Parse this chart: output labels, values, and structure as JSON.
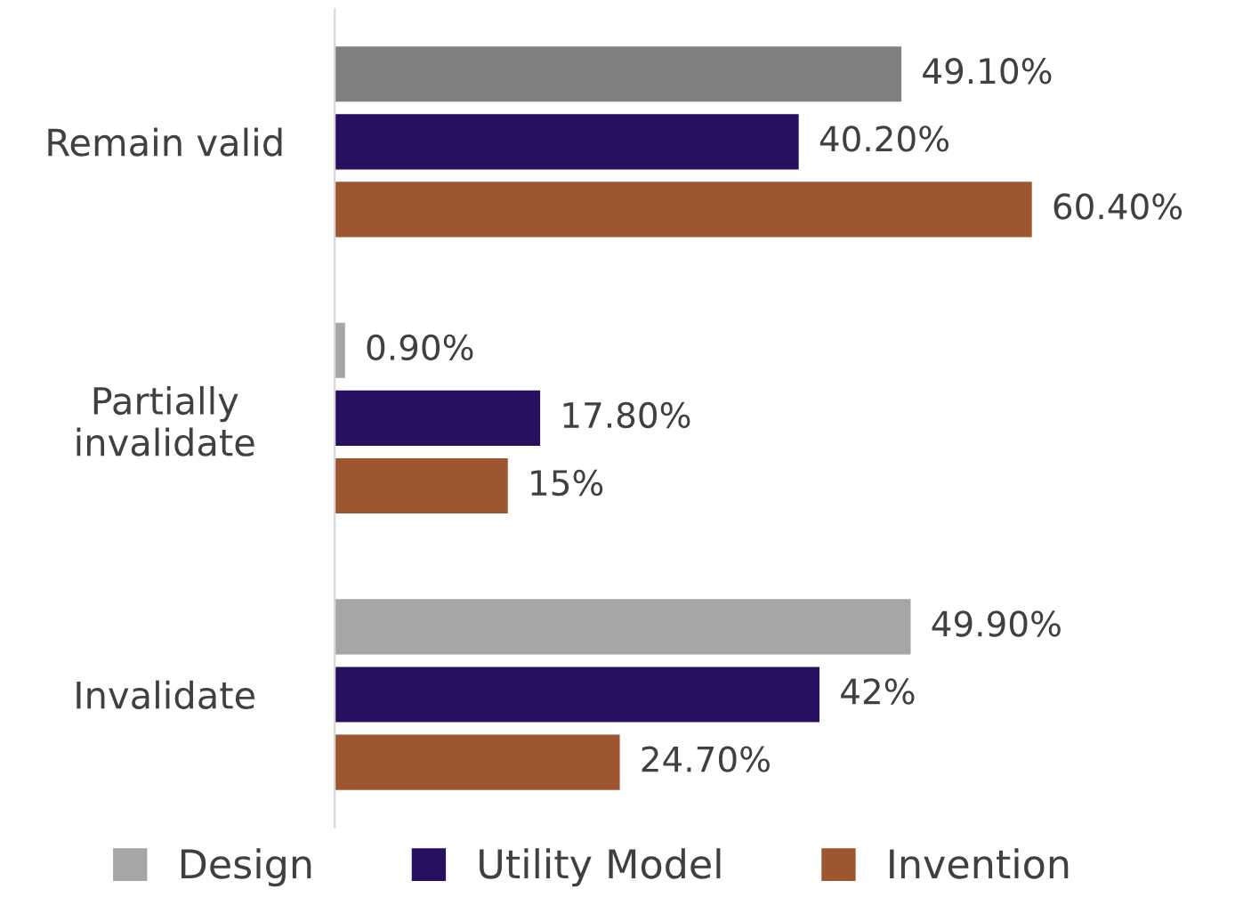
{
  "chart_data": {
    "type": "bar",
    "orientation": "horizontal",
    "categories": [
      "Remain valid",
      "Partially\ninvalidate",
      "Invalidate"
    ],
    "series": [
      {
        "name": "Design",
        "color": "#a6a6a6",
        "colors": [
          "#808080",
          "#a6a6a6",
          "#a6a6a6"
        ],
        "values": [
          49.1,
          0.9,
          49.9
        ],
        "value_labels": [
          "49.10%",
          "0.90%",
          "49.90%"
        ]
      },
      {
        "name": "Utility Model",
        "color": "#26105f",
        "values": [
          40.2,
          17.8,
          42
        ],
        "value_labels": [
          "40.20%",
          "17.80%",
          "42%"
        ]
      },
      {
        "name": "Invention",
        "color": "#9c5731",
        "values": [
          60.4,
          15,
          24.7
        ],
        "value_labels": [
          "60.40%",
          "15%",
          "24.70%"
        ]
      }
    ],
    "legend": "bottom",
    "grid": false,
    "tick_labels": "y"
  }
}
